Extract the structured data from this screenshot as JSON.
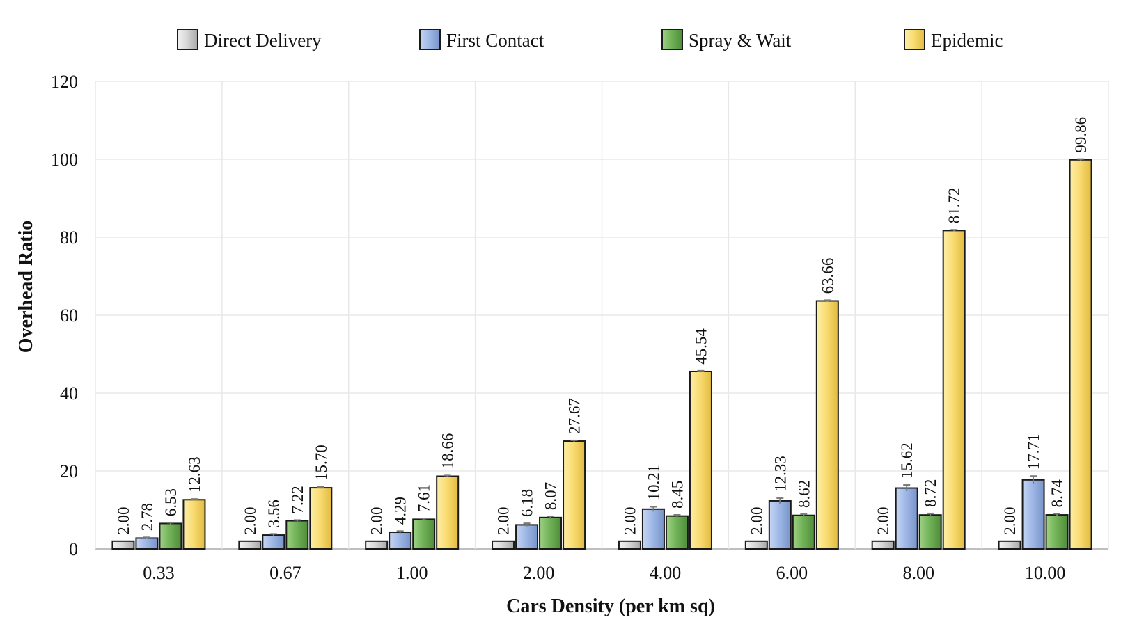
{
  "chart_data": {
    "type": "bar",
    "title": "",
    "xlabel": "Cars Density (per km sq)",
    "ylabel": "Overhead Ratio",
    "categories": [
      "0.33",
      "0.67",
      "1.00",
      "2.00",
      "4.00",
      "6.00",
      "8.00",
      "10.00"
    ],
    "ylim": [
      0,
      120
    ],
    "yticks": [
      "0",
      "20",
      "40",
      "60",
      "80",
      "100",
      "120"
    ],
    "grid": true,
    "legend_position": "top-center",
    "series": [
      {
        "name": "Direct Delivery",
        "color": "#d4d4d4",
        "values": [
          2.0,
          2.0,
          2.0,
          2.0,
          2.0,
          2.0,
          2.0,
          2.0
        ],
        "labels": [
          "2.00",
          "2.00",
          "2.00",
          "2.00",
          "2.00",
          "2.00",
          "2.00",
          "2.00"
        ],
        "errors": [
          0,
          0,
          0,
          0,
          0,
          0,
          0,
          0
        ]
      },
      {
        "name": "First Contact",
        "color": "#9fb8e6",
        "values": [
          2.78,
          3.56,
          4.29,
          6.18,
          10.21,
          12.33,
          15.62,
          17.71
        ],
        "labels": [
          "2.78",
          "3.56",
          "4.29",
          "6.18",
          "10.21",
          "12.33",
          "15.62",
          "17.71"
        ],
        "errors": [
          0.2,
          0.3,
          0.3,
          0.4,
          0.6,
          0.7,
          0.8,
          1.0
        ]
      },
      {
        "name": "Spray & Wait",
        "color": "#72b358",
        "values": [
          6.53,
          7.22,
          7.61,
          8.07,
          8.45,
          8.62,
          8.72,
          8.74
        ],
        "labels": [
          "6.53",
          "7.22",
          "7.61",
          "8.07",
          "8.45",
          "8.62",
          "8.72",
          "8.74"
        ],
        "errors": [
          0.2,
          0.2,
          0.2,
          0.3,
          0.3,
          0.3,
          0.4,
          0.3
        ]
      },
      {
        "name": "Epidemic",
        "color": "#f9dc73",
        "values": [
          12.63,
          15.7,
          18.66,
          27.67,
          45.54,
          63.66,
          81.72,
          99.86
        ],
        "labels": [
          "12.63",
          "15.70",
          "18.66",
          "27.67",
          "45.54",
          "63.66",
          "81.72",
          "99.86"
        ],
        "errors": [
          0.2,
          0.2,
          0.2,
          0.2,
          0.2,
          0.2,
          0.2,
          0.2
        ]
      }
    ]
  }
}
